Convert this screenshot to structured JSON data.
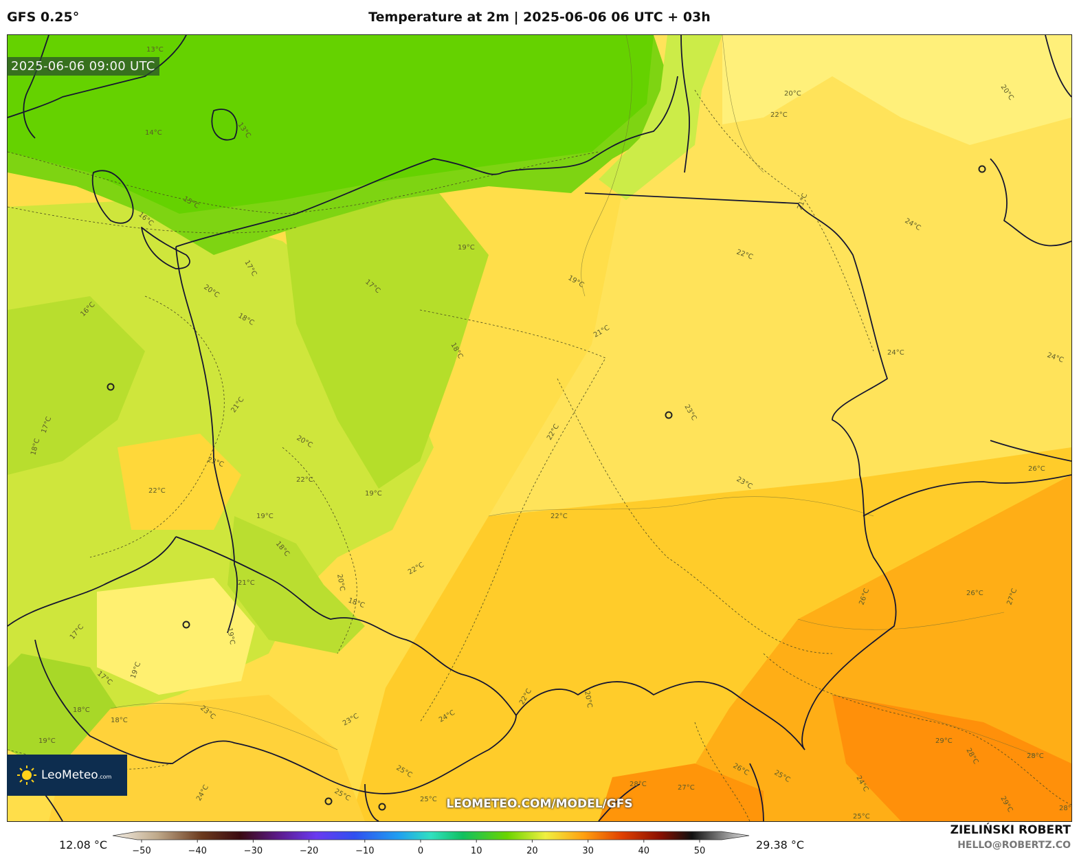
{
  "header": {
    "model": "GFS 0.25°",
    "title": "Temperature at 2m | 2025-06-06 06 UTC + 03h"
  },
  "map": {
    "valid_time": "2025-06-06 09:00 UTC",
    "watermark": "LEOMETEO.COM/MODEL/GFS",
    "logo": {
      "name": "LeoMeteo",
      "suffix": ".com"
    },
    "contour_labels": [
      "13°C",
      "13°C",
      "14°C",
      "15°C",
      "16°C",
      "16°C",
      "17°C",
      "17°C",
      "17°C",
      "17°C",
      "17°C",
      "18°C",
      "18°C",
      "18°C",
      "18°C",
      "18°C",
      "18°C",
      "18°C",
      "19°C",
      "19°C",
      "19°C",
      "19°C",
      "19°C",
      "19°C",
      "19°C",
      "20°C",
      "20°C",
      "20°C",
      "20°C",
      "20°C",
      "20°C",
      "21°C",
      "21°C",
      "21°C",
      "21°C",
      "22°C",
      "22°C",
      "22°C",
      "22°C",
      "22°C",
      "22°C",
      "22°C",
      "22°C",
      "23°C",
      "23°C",
      "23°C",
      "23°C",
      "23°C",
      "24°C",
      "24°C",
      "24°C",
      "24°C",
      "24°C",
      "24°C",
      "25°C",
      "25°C",
      "25°C",
      "25°C",
      "25°C",
      "26°C",
      "26°C",
      "26°C",
      "26°C",
      "27°C",
      "27°C",
      "28°C",
      "28°C",
      "28°C",
      "28°C",
      "29°C",
      "29°C"
    ],
    "colors": {
      "cold": "#6bd400",
      "mild": "#b8e22e",
      "warm": "#ffe860",
      "hot": "#ffc21a",
      "hotter": "#ff9a0a"
    }
  },
  "colorbar": {
    "min_label": "12.08 °C",
    "max_label": "29.38 °C",
    "ticks": [
      "−50",
      "−40",
      "−30",
      "−20",
      "−10",
      "0",
      "10",
      "20",
      "30",
      "40",
      "50"
    ]
  },
  "credit": {
    "name": "ZIELIŃSKI ROBERT",
    "email": "HELLO@ROBERTZ.CO"
  }
}
